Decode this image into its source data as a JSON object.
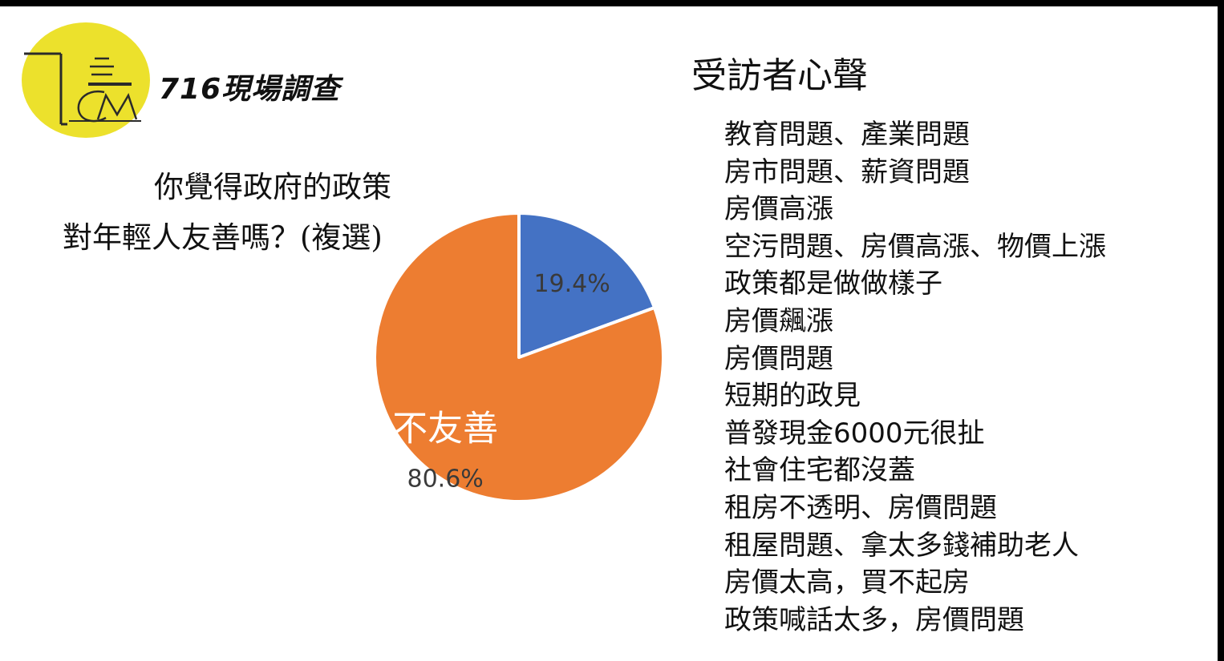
{
  "logo": {
    "bg_color": "#ece12c",
    "title": "716現場調查"
  },
  "question": {
    "line1": "你覺得政府的政策",
    "line2": "對年輕人友善嗎？(複選)"
  },
  "chart_data": {
    "type": "pie",
    "title": "你覺得政府的政策對年輕人友善嗎？(複選)",
    "slices": [
      {
        "label": "",
        "value": 19.4,
        "value_label": "19.4%",
        "color": "#4472c4"
      },
      {
        "label": "不友善",
        "value": 80.6,
        "value_label": "80.6%",
        "color": "#ed7d31"
      }
    ]
  },
  "voices": {
    "title": "受訪者心聲",
    "items": [
      "教育問題、產業問題",
      "房市問題、薪資問題",
      "房價高漲",
      "空污問題、房價高漲、物價上漲",
      "政策都是做做樣子",
      "房價飆漲",
      "房價問題",
      "短期的政見",
      "普發現金6000元很扯",
      "社會住宅都沒蓋",
      "租房不透明、房價問題",
      "租屋問題、拿太多錢補助老人",
      "房價太高，買不起房",
      "政策喊話太多，房價問題"
    ]
  }
}
